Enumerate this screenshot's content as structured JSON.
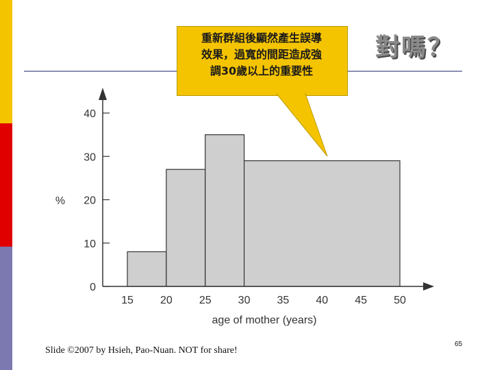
{
  "slide": {
    "callout_text": "重新群組後顯然產生誤導\n效果，過寬的間距造成強\n調30歲以上的重要性",
    "question": "對嗎？",
    "footer": "Slide ©2007 by Hsieh, Pao-Nuan. NOT for share!",
    "page_number": "65"
  },
  "colors": {
    "accent_yellow": "#f5c400",
    "accent_red": "#e00000",
    "accent_purple": "#7c78b0",
    "callout_fill": "#f5c400",
    "bar_fill": "#cfcfcf",
    "rule": "#8c8fb4"
  },
  "chart_data": {
    "type": "bar",
    "histogram": true,
    "bins": [
      {
        "start": 15,
        "end": 20,
        "value": 8
      },
      {
        "start": 20,
        "end": 25,
        "value": 27
      },
      {
        "start": 25,
        "end": 30,
        "value": 35
      },
      {
        "start": 30,
        "end": 50,
        "value": 29
      }
    ],
    "xlabel": "age of mother (years)",
    "ylabel": "%",
    "xlim": [
      12,
      52
    ],
    "ylim": [
      0,
      43
    ],
    "x_ticks": [
      15,
      20,
      25,
      30,
      35,
      40,
      45,
      50
    ],
    "y_ticks": [
      0,
      10,
      20,
      30,
      40
    ],
    "grid": false
  }
}
